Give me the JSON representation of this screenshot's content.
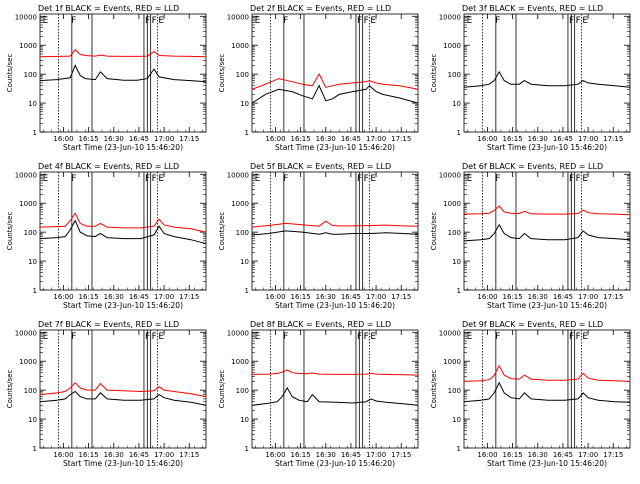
{
  "colors": {
    "events": "#000000",
    "lld": "#ff0000",
    "background": "#ffffff",
    "axis": "#000000"
  },
  "common": {
    "xlabel": "Start Time (23-Jun-10 15:46:20)",
    "ylabel": "Counts/sec",
    "x_ticks": [
      "16:00",
      "16:15",
      "16:30",
      "16:45",
      "17:00",
      "17:15"
    ],
    "x_tick_minutes": [
      14,
      29,
      44,
      59,
      74,
      89
    ],
    "y_ticks": [
      "1",
      "10",
      "100",
      "1000",
      "10000"
    ],
    "y_tick_values": [
      1,
      10,
      100,
      1000,
      10000
    ],
    "xlim_minutes": [
      0,
      99
    ],
    "ylim": [
      1,
      12000
    ],
    "y_scale": "log",
    "x_unit": "minutes since 15:46:20"
  },
  "chart_data": [
    {
      "type": "line",
      "title": "Det 1f BLACK = Events, RED = LLD",
      "x_minutes": [
        0,
        10,
        18,
        21,
        24,
        27,
        33,
        36,
        40,
        50,
        58,
        64,
        68,
        71,
        80,
        90,
        99
      ],
      "series": [
        {
          "name": "Events",
          "color": "#000000",
          "values": [
            60,
            65,
            75,
            200,
            90,
            70,
            65,
            120,
            70,
            62,
            62,
            70,
            150,
            80,
            65,
            60,
            55
          ]
        },
        {
          "name": "LLD",
          "color": "#ff0000",
          "values": [
            400,
            410,
            420,
            700,
            480,
            440,
            420,
            460,
            420,
            410,
            410,
            420,
            600,
            440,
            420,
            410,
            400
          ]
        }
      ]
    },
    {
      "type": "line",
      "title": "Det 2f BLACK = Events, RED = LLD",
      "x_minutes": [
        0,
        8,
        16,
        24,
        30,
        36,
        40,
        44,
        48,
        52,
        60,
        68,
        70,
        74,
        78,
        88,
        99
      ],
      "series": [
        {
          "name": "Events",
          "color": "#000000",
          "values": [
            10,
            20,
            30,
            25,
            18,
            14,
            40,
            12,
            14,
            20,
            25,
            30,
            40,
            25,
            20,
            15,
            10
          ]
        },
        {
          "name": "LLD",
          "color": "#ff0000",
          "values": [
            30,
            45,
            70,
            55,
            45,
            40,
            100,
            35,
            40,
            45,
            50,
            55,
            60,
            50,
            45,
            40,
            30
          ]
        }
      ]
    },
    {
      "type": "line",
      "title": "Det 3f BLACK = Events, RED = LLD",
      "x_minutes": [
        0,
        10,
        15,
        18,
        21,
        24,
        28,
        33,
        36,
        40,
        50,
        60,
        68,
        71,
        74,
        80,
        90,
        99
      ],
      "series": [
        {
          "name": "Events",
          "color": "#000000",
          "values": [
            35,
            40,
            45,
            60,
            120,
            60,
            45,
            45,
            60,
            45,
            40,
            40,
            45,
            60,
            50,
            45,
            40,
            35
          ]
        }
      ]
    },
    {
      "type": "line",
      "title": "Det 4f BLACK = Events, RED = LLD",
      "x_minutes": [
        0,
        10,
        15,
        18,
        21,
        24,
        28,
        33,
        36,
        40,
        50,
        60,
        68,
        71,
        74,
        80,
        90,
        99
      ],
      "series": [
        {
          "name": "Events",
          "color": "#000000",
          "values": [
            60,
            65,
            70,
            120,
            250,
            100,
            75,
            70,
            90,
            65,
            60,
            60,
            80,
            160,
            90,
            70,
            55,
            40
          ]
        },
        {
          "name": "LLD",
          "color": "#ff0000",
          "values": [
            150,
            155,
            160,
            250,
            450,
            200,
            160,
            160,
            200,
            150,
            140,
            140,
            160,
            280,
            180,
            150,
            130,
            100
          ]
        }
      ]
    },
    {
      "type": "line",
      "title": "Det 5f BLACK = Events, RED = LLD",
      "x_minutes": [
        0,
        10,
        20,
        30,
        40,
        44,
        48,
        52,
        60,
        70,
        80,
        90,
        99
      ],
      "series": [
        {
          "name": "Events",
          "color": "#000000",
          "values": [
            80,
            90,
            110,
            100,
            85,
            95,
            85,
            85,
            90,
            90,
            95,
            90,
            85
          ]
        },
        {
          "name": "LLD",
          "color": "#ff0000",
          "values": [
            150,
            170,
            200,
            180,
            160,
            240,
            170,
            165,
            165,
            170,
            175,
            165,
            160
          ]
        }
      ]
    },
    {
      "type": "line",
      "title": "Det 6f BLACK = Events, RED = LLD",
      "x_minutes": [
        0,
        10,
        15,
        18,
        21,
        24,
        28,
        33,
        36,
        40,
        50,
        60,
        68,
        71,
        74,
        80,
        90,
        99
      ],
      "series": [
        {
          "name": "Events",
          "color": "#000000",
          "values": [
            50,
            55,
            60,
            90,
            180,
            90,
            65,
            60,
            90,
            60,
            55,
            55,
            65,
            110,
            80,
            65,
            60,
            55
          ]
        },
        {
          "name": "LLD",
          "color": "#ff0000",
          "values": [
            420,
            430,
            450,
            560,
            800,
            500,
            450,
            440,
            520,
            430,
            420,
            420,
            440,
            580,
            470,
            430,
            420,
            400
          ]
        }
      ]
    },
    {
      "type": "line",
      "title": "Det 7f BLACK = Events, RED = LLD",
      "x_minutes": [
        0,
        10,
        15,
        18,
        21,
        24,
        28,
        33,
        36,
        40,
        50,
        60,
        68,
        71,
        74,
        80,
        90,
        99
      ],
      "series": [
        {
          "name": "Events",
          "color": "#000000",
          "values": [
            40,
            45,
            50,
            70,
            90,
            60,
            50,
            50,
            80,
            50,
            45,
            45,
            50,
            70,
            55,
            45,
            38,
            30
          ]
        },
        {
          "name": "LLD",
          "color": "#ff0000",
          "values": [
            70,
            80,
            90,
            120,
            180,
            120,
            100,
            100,
            170,
            100,
            95,
            90,
            95,
            130,
            100,
            90,
            75,
            60
          ]
        }
      ]
    },
    {
      "type": "line",
      "title": "Det 8f BLACK = Events, RED = LLD",
      "x_minutes": [
        0,
        10,
        15,
        18,
        21,
        24,
        28,
        33,
        36,
        40,
        50,
        60,
        68,
        71,
        74,
        80,
        90,
        99
      ],
      "series": [
        {
          "name": "Events",
          "color": "#000000",
          "values": [
            30,
            35,
            40,
            60,
            120,
            60,
            45,
            40,
            70,
            40,
            38,
            36,
            40,
            50,
            42,
            38,
            34,
            30
          ]
        },
        {
          "name": "LLD",
          "color": "#ff0000",
          "values": [
            350,
            360,
            380,
            420,
            500,
            400,
            380,
            370,
            390,
            360,
            350,
            350,
            360,
            380,
            360,
            350,
            340,
            330
          ]
        }
      ]
    },
    {
      "type": "line",
      "title": "Det 9f BLACK = Events, RED = LLD",
      "x_minutes": [
        0,
        10,
        15,
        18,
        21,
        24,
        28,
        33,
        36,
        40,
        50,
        60,
        68,
        71,
        74,
        80,
        90,
        99
      ],
      "series": [
        {
          "name": "Events",
          "color": "#000000",
          "values": [
            40,
            45,
            50,
            80,
            180,
            80,
            55,
            50,
            80,
            50,
            45,
            45,
            50,
            80,
            55,
            45,
            40,
            38
          ]
        },
        {
          "name": "LLD",
          "color": "#ff0000",
          "values": [
            200,
            210,
            230,
            320,
            700,
            330,
            250,
            240,
            330,
            240,
            220,
            220,
            240,
            380,
            260,
            220,
            210,
            200
          ]
        }
      ]
    }
  ],
  "markers": {
    "solid_minutes": [
      19,
      31,
      62,
      64,
      66
    ],
    "dotted_minutes": [
      11,
      70
    ],
    "labels": [
      {
        "text": "E",
        "minute": 1
      },
      {
        "text": "F",
        "minute": 18
      },
      {
        "text": "F",
        "minute": 62
      },
      {
        "text": "F",
        "minute": 66
      },
      {
        "text": "E",
        "minute": 70
      }
    ]
  }
}
